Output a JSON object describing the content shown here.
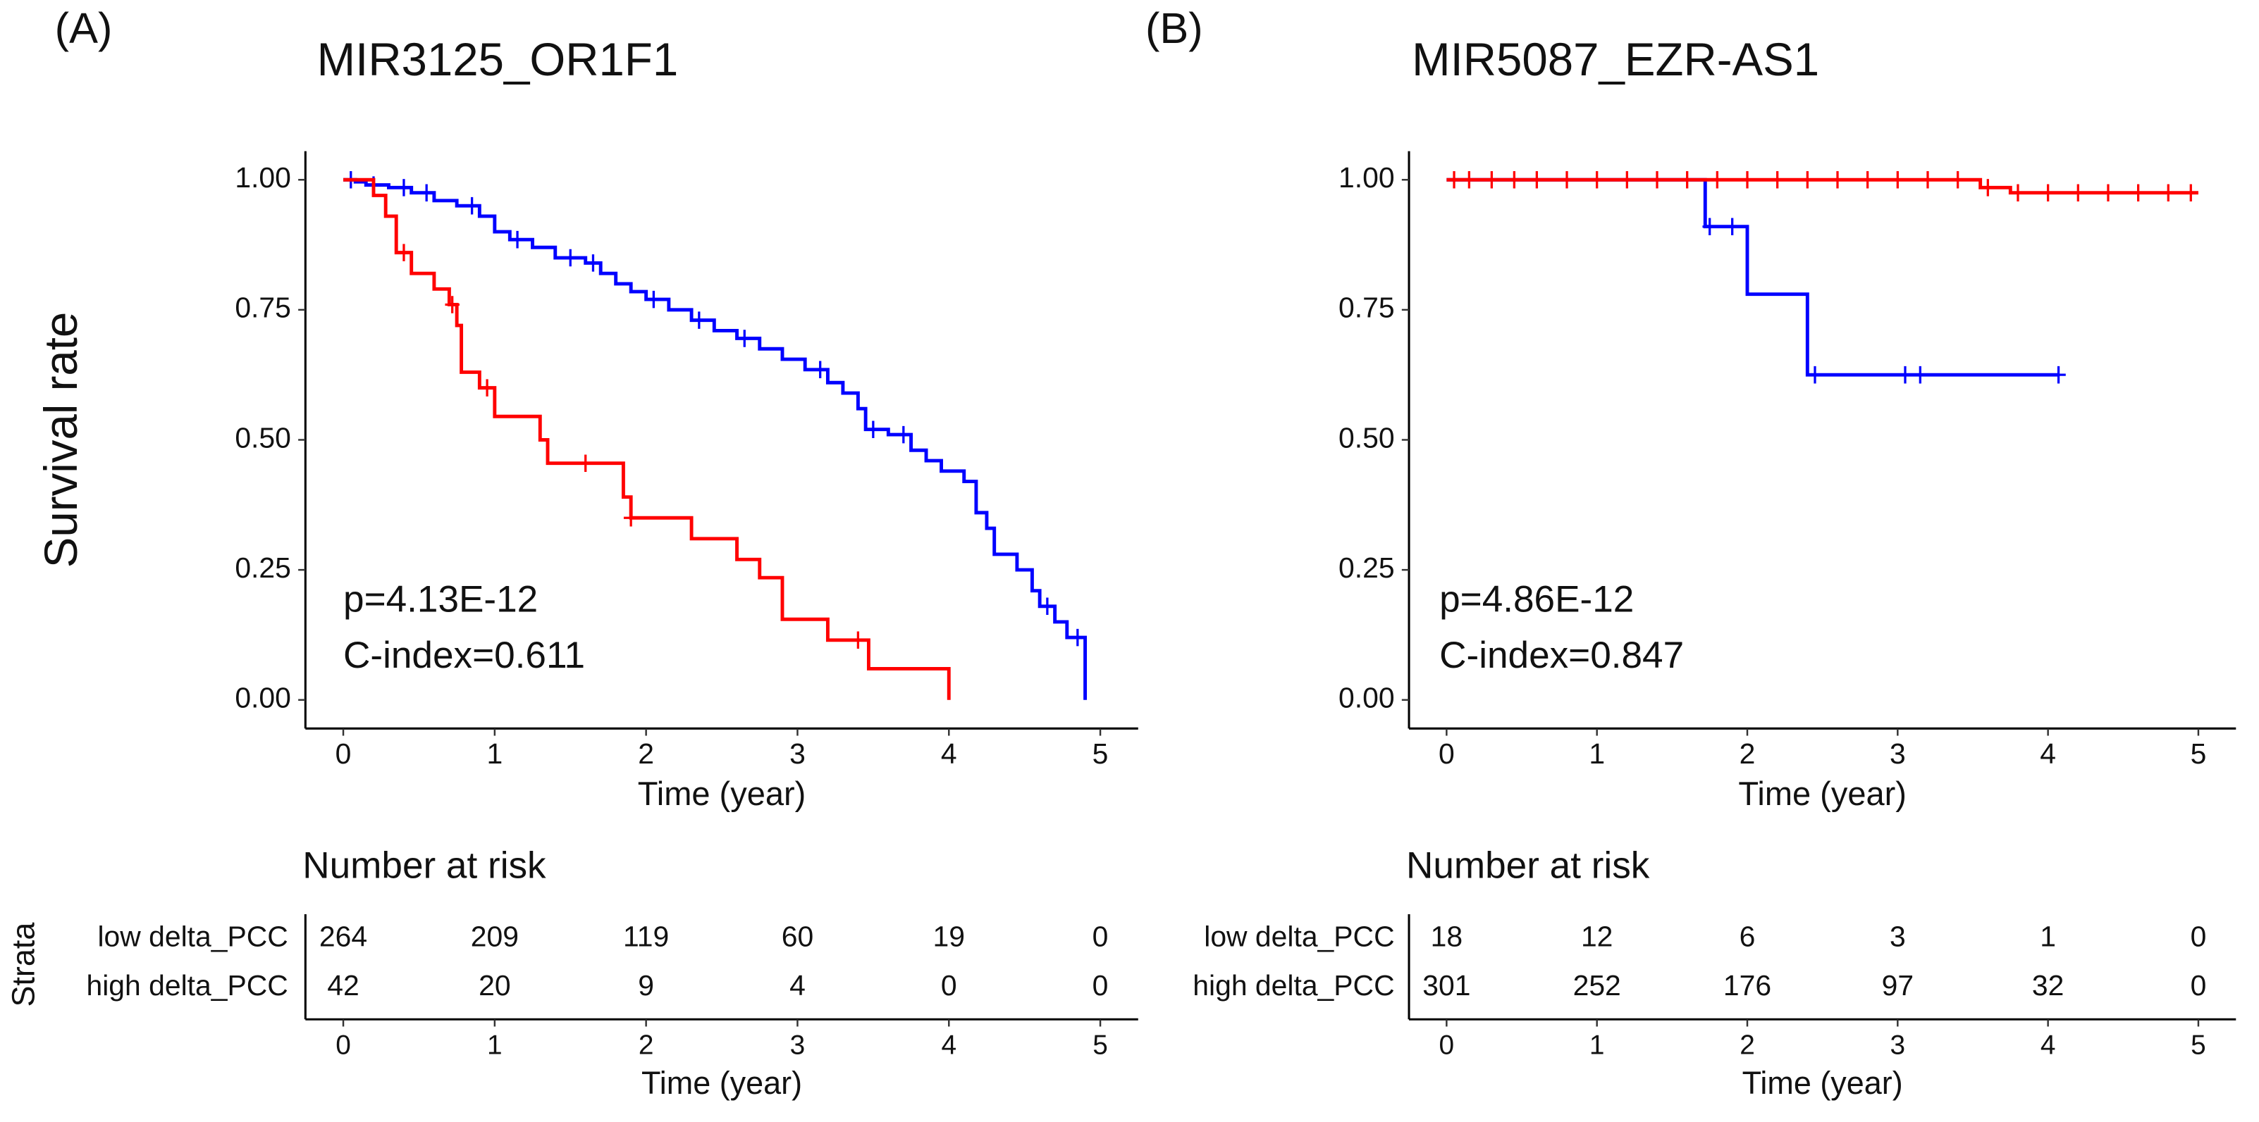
{
  "chart_data": [
    {
      "type": "line",
      "step": true,
      "panel_label": "(A)",
      "title": "MIR3125_OR1F1",
      "ylabel": "Survival rate",
      "xlabel": "Time (year)",
      "xlim": [
        -0.25,
        5.25
      ],
      "ylim": [
        -0.055,
        1.055
      ],
      "xticks": [
        0,
        1,
        2,
        3,
        4,
        5
      ],
      "yticks": [
        {
          "value": 0,
          "label": "0.00"
        },
        {
          "value": 0.25,
          "label": "0.25"
        },
        {
          "value": 0.5,
          "label": "0.50"
        },
        {
          "value": 0.75,
          "label": "0.75"
        },
        {
          "value": 1,
          "label": "1.00"
        }
      ],
      "annotations": [
        "p=4.13E-12",
        "C-index=0.611"
      ],
      "series": [
        {
          "name": "low delta_PCC",
          "color": "#0000ff",
          "x": [
            0,
            0.08,
            0.15,
            0.3,
            0.45,
            0.6,
            0.75,
            0.9,
            1.0,
            1.1,
            1.25,
            1.4,
            1.6,
            1.7,
            1.8,
            1.9,
            2.0,
            2.15,
            2.3,
            2.45,
            2.6,
            2.75,
            2.9,
            3.05,
            3.2,
            3.3,
            3.4,
            3.45,
            3.6,
            3.75,
            3.85,
            3.95,
            4.1,
            4.18,
            4.25,
            4.3,
            4.45,
            4.55,
            4.6,
            4.7,
            4.78,
            4.9
          ],
          "values": [
            1.0,
            0.996,
            0.99,
            0.985,
            0.975,
            0.96,
            0.95,
            0.93,
            0.9,
            0.885,
            0.87,
            0.85,
            0.84,
            0.82,
            0.8,
            0.785,
            0.77,
            0.75,
            0.73,
            0.71,
            0.695,
            0.675,
            0.655,
            0.635,
            0.61,
            0.59,
            0.56,
            0.52,
            0.51,
            0.48,
            0.46,
            0.44,
            0.42,
            0.36,
            0.33,
            0.28,
            0.25,
            0.21,
            0.18,
            0.15,
            0.12,
            0.0
          ],
          "censor_x": [
            0.05,
            0.2,
            0.4,
            0.55,
            0.85,
            1.15,
            1.5,
            1.65,
            2.05,
            2.35,
            2.65,
            3.15,
            3.5,
            3.7,
            4.65,
            4.85
          ],
          "censor_values": [
            1.0,
            0.99,
            0.985,
            0.975,
            0.95,
            0.885,
            0.85,
            0.84,
            0.77,
            0.73,
            0.695,
            0.635,
            0.52,
            0.51,
            0.18,
            0.12
          ]
        },
        {
          "name": "high delta_PCC",
          "color": "#ff0000",
          "x": [
            0,
            0.2,
            0.28,
            0.35,
            0.45,
            0.6,
            0.7,
            0.75,
            0.78,
            0.9,
            1.0,
            1.3,
            1.35,
            1.85,
            1.9,
            2.3,
            2.6,
            2.75,
            2.9,
            3.2,
            3.47,
            4.0
          ],
          "values": [
            1.0,
            0.97,
            0.93,
            0.86,
            0.82,
            0.79,
            0.76,
            0.72,
            0.63,
            0.6,
            0.545,
            0.5,
            0.455,
            0.39,
            0.35,
            0.31,
            0.27,
            0.235,
            0.155,
            0.115,
            0.06,
            0.0
          ],
          "censor_x": [
            0.4,
            0.72,
            0.95,
            1.6,
            1.9,
            3.4
          ],
          "censor_values": [
            0.86,
            0.76,
            0.6,
            0.455,
            0.35,
            0.115
          ]
        }
      ],
      "risk_table": {
        "title": "Number at risk",
        "strata_label": "Strata",
        "xlabel": "Time (year)",
        "counts": [
          [
            264,
            209,
            119,
            60,
            19,
            0
          ],
          [
            42,
            20,
            9,
            4,
            0,
            0
          ]
        ]
      }
    },
    {
      "type": "line",
      "step": true,
      "panel_label": "(B)",
      "title": "MIR5087_EZR-AS1",
      "xlabel": "Time (year)",
      "xlim": [
        -0.25,
        5.25
      ],
      "ylim": [
        -0.055,
        1.055
      ],
      "xticks": [
        0,
        1,
        2,
        3,
        4,
        5
      ],
      "yticks": [
        {
          "value": 0,
          "label": "0.00"
        },
        {
          "value": 0.25,
          "label": "0.25"
        },
        {
          "value": 0.5,
          "label": "0.50"
        },
        {
          "value": 0.75,
          "label": "0.75"
        },
        {
          "value": 1,
          "label": "1.00"
        }
      ],
      "annotations": [
        "p=4.86E-12",
        "C-index=0.847"
      ],
      "series": [
        {
          "name": "low delta_PCC",
          "color": "#0000ff",
          "x": [
            0,
            1.72,
            2.0,
            2.4,
            4.07
          ],
          "values": [
            1.0,
            0.91,
            0.78,
            0.625,
            0.625
          ],
          "censor_x": [
            1.75,
            1.9,
            2.45,
            3.05,
            3.15,
            4.07
          ],
          "censor_values": [
            0.91,
            0.91,
            0.625,
            0.625,
            0.625,
            0.625
          ]
        },
        {
          "name": "high delta_PCC",
          "color": "#ff0000",
          "x": [
            0,
            3.55,
            3.75,
            5.0
          ],
          "values": [
            1.0,
            0.985,
            0.975,
            0.975
          ],
          "censor_x": [
            0.05,
            0.15,
            0.3,
            0.45,
            0.6,
            0.8,
            1.0,
            1.2,
            1.4,
            1.6,
            1.8,
            2.0,
            2.2,
            2.4,
            2.6,
            2.8,
            3.0,
            3.2,
            3.4,
            3.6,
            3.8,
            4.0,
            4.2,
            4.4,
            4.6,
            4.8,
            4.95
          ],
          "censor_values": [
            1,
            1,
            1,
            1,
            1,
            1,
            1,
            1,
            1,
            1,
            1,
            1,
            1,
            1,
            1,
            1,
            1,
            1,
            1,
            0.985,
            0.975,
            0.975,
            0.975,
            0.975,
            0.975,
            0.975,
            0.975
          ]
        }
      ],
      "risk_table": {
        "title": "Number at risk",
        "xlabel": "Time (year)",
        "counts": [
          [
            18,
            12,
            6,
            3,
            1,
            0
          ],
          [
            301,
            252,
            176,
            97,
            32,
            0
          ]
        ]
      }
    }
  ]
}
